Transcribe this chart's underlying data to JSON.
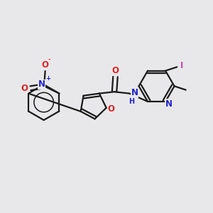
{
  "bg_color": "#e8e8ea",
  "bond_color": "#1a1a1a",
  "N_color": "#2222cc",
  "O_color": "#dd2222",
  "I_color": "#cc44bb",
  "figsize": [
    3.0,
    3.0
  ],
  "dpi": 100,
  "xlim": [
    0,
    10
  ],
  "ylim": [
    0,
    10
  ]
}
